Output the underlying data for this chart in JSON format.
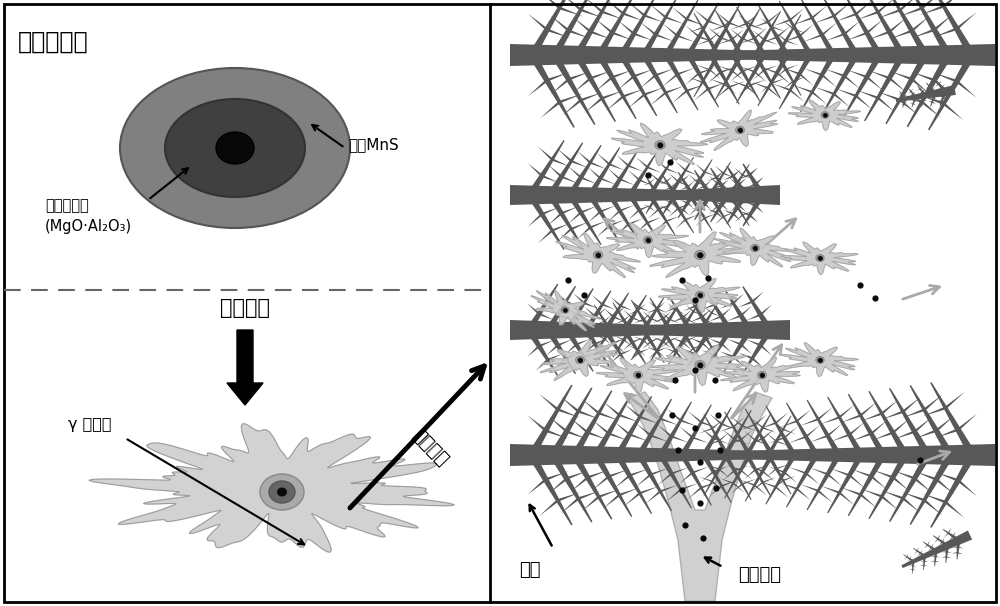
{
  "left_panel_title": "复合夹杂物",
  "label_outer_mns": "外围MnS",
  "label_oxide_core": "氧化物核心\n(MgO·Al₂O₃)",
  "label_heterogeneous": "异质形核",
  "label_austenite": "γ 奥氏体",
  "label_suppress": "抑制偏析",
  "label_dendrite": "枝晶",
  "label_solute": "溶质元素",
  "bg_color": "#ffffff",
  "black": "#000000",
  "dendrite_color": "#585858",
  "inclusion_fill": "#cccccc",
  "fork_color": "#c8c8c8"
}
